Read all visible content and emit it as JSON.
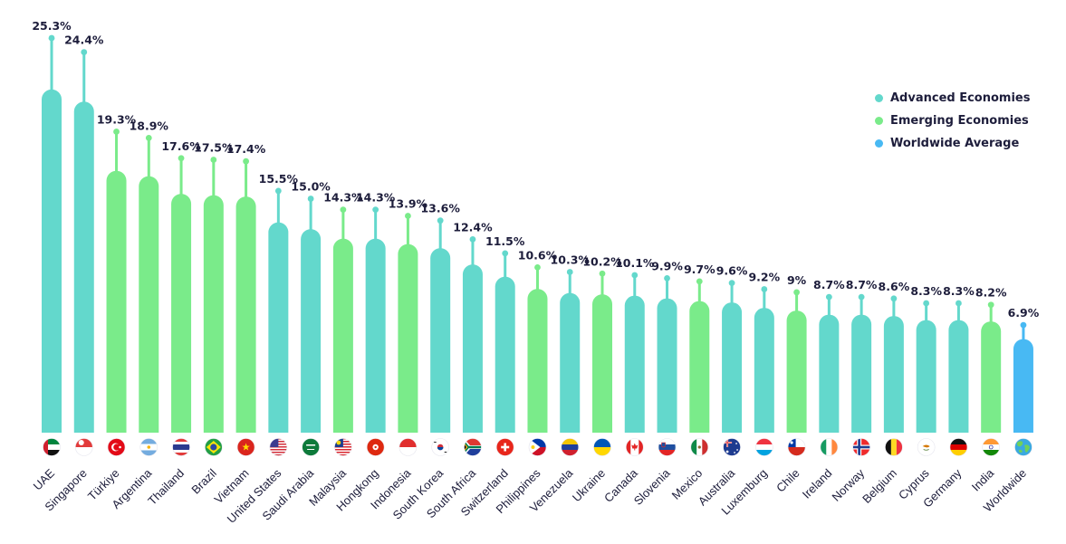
{
  "chart_data": {
    "type": "bar",
    "title": "",
    "xlabel": "",
    "ylabel": "",
    "ylim": [
      0,
      26
    ],
    "categories": [
      "UAE",
      "Singapore",
      "Türkiye",
      "Argentina",
      "Thailand",
      "Brazil",
      "Vietnam",
      "United States",
      "Saudi Arabia",
      "Malaysia",
      "Hongkong",
      "Indonesia",
      "South Korea",
      "South Africa",
      "Switzerland",
      "Philippines",
      "Venezuela",
      "Ukraine",
      "Canada",
      "Slovenia",
      "Mexico",
      "Australia",
      "Luxemburg",
      "Chile",
      "Ireland",
      "Norway",
      "Belgium",
      "Cyprus",
      "Germany",
      "India",
      "Worldwide"
    ],
    "values": [
      25.3,
      24.4,
      19.3,
      18.9,
      17.6,
      17.5,
      17.4,
      15.5,
      15.0,
      14.3,
      14.3,
      13.9,
      13.6,
      12.4,
      11.5,
      10.6,
      10.3,
      10.2,
      10.1,
      9.9,
      9.7,
      9.6,
      9.2,
      9.0,
      8.7,
      8.7,
      8.6,
      8.3,
      8.3,
      8.2,
      6.9
    ],
    "value_labels": [
      "25.3%",
      "24.4%",
      "19.3%",
      "18.9%",
      "17.6%",
      "17.5%",
      "17.4%",
      "15.5%",
      "15.0%",
      "14.3%",
      "14.3%",
      "13.9%",
      "13.6%",
      "12.4%",
      "11.5%",
      "10.6%",
      "10.3%",
      "10.2%",
      "10.1%",
      "9.9%",
      "9.7%",
      "9.6%",
      "9.2%",
      "9%",
      "8.7%",
      "8.7%",
      "8.6%",
      "8.3%",
      "8.3%",
      "8.2%",
      "6.9%"
    ],
    "groups": [
      "Advanced Economies",
      "Advanced Economies",
      "Emerging Economies",
      "Emerging Economies",
      "Emerging Economies",
      "Emerging Economies",
      "Emerging Economies",
      "Advanced Economies",
      "Advanced Economies",
      "Emerging Economies",
      "Advanced Economies",
      "Emerging Economies",
      "Advanced Economies",
      "Advanced Economies",
      "Advanced Economies",
      "Emerging Economies",
      "Advanced Economies",
      "Emerging Economies",
      "Advanced Economies",
      "Advanced Economies",
      "Emerging Economies",
      "Advanced Economies",
      "Advanced Economies",
      "Emerging Economies",
      "Advanced Economies",
      "Advanced Economies",
      "Advanced Economies",
      "Advanced Economies",
      "Advanced Economies",
      "Emerging Economies",
      "Worldwide Average"
    ],
    "legend": {
      "placement": "top-right",
      "entries": [
        {
          "name": "Advanced Economies",
          "color": "#63d8cc"
        },
        {
          "name": "Emerging Economies",
          "color": "#7aeb8a"
        },
        {
          "name": "Worldwide Average",
          "color": "#48b9f3"
        }
      ]
    },
    "flag_icons": [
      "uae-flag-icon",
      "singapore-flag-icon",
      "turkiye-flag-icon",
      "argentina-flag-icon",
      "thailand-flag-icon",
      "brazil-flag-icon",
      "vietnam-flag-icon",
      "united-states-flag-icon",
      "saudi-arabia-flag-icon",
      "malaysia-flag-icon",
      "hongkong-flag-icon",
      "indonesia-flag-icon",
      "south-korea-flag-icon",
      "south-africa-flag-icon",
      "switzerland-flag-icon",
      "philippines-flag-icon",
      "venezuela-flag-icon",
      "ukraine-flag-icon",
      "canada-flag-icon",
      "slovenia-flag-icon",
      "mexico-flag-icon",
      "australia-flag-icon",
      "luxemburg-flag-icon",
      "chile-flag-icon",
      "ireland-flag-icon",
      "norway-flag-icon",
      "belgium-flag-icon",
      "cyprus-flag-icon",
      "germany-flag-icon",
      "india-flag-icon",
      "globe-icon"
    ]
  }
}
